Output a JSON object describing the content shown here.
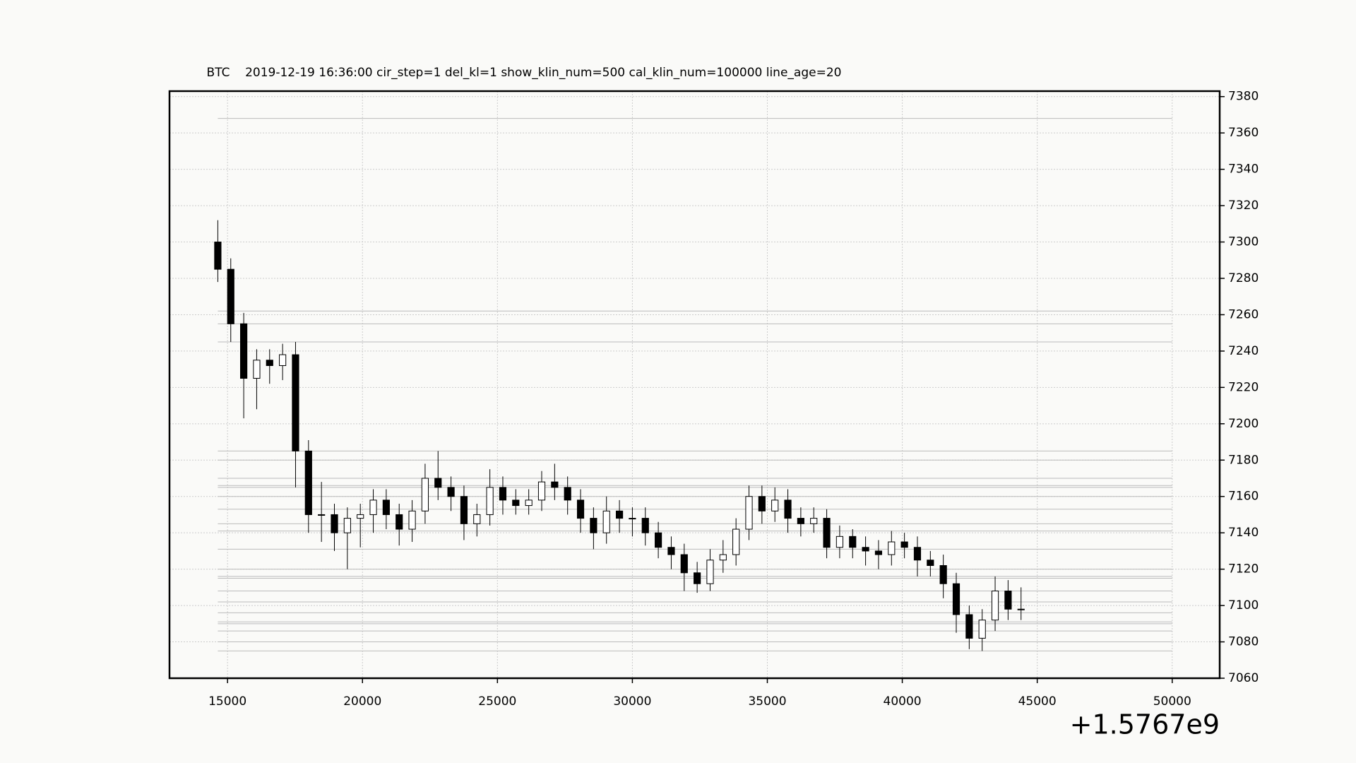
{
  "chart_data": {
    "type": "candlestick",
    "title": "BTC    2019-12-19 16:36:00 cir_step=1 del_kl=1 show_klin_num=500 cal_klin_num=100000 line_age=20",
    "x_offset_label": "+1.5767e9",
    "x": [
      14640,
      15120,
      15600,
      16080,
      16560,
      17040,
      17520,
      18000,
      18480,
      18960,
      19440,
      19920,
      20400,
      20880,
      21360,
      21840,
      22320,
      22800,
      23280,
      23760,
      24240,
      24720,
      25200,
      25680,
      26160,
      26640,
      27120,
      27600,
      28080,
      28560,
      29040,
      29520,
      30000,
      30480,
      30960,
      31440,
      31920,
      32400,
      32880,
      33360,
      33840,
      34320,
      34800,
      35280,
      35760,
      36240,
      36720,
      37200,
      37680,
      38160,
      38640,
      39120,
      39600,
      40080,
      40560,
      41040,
      41520,
      42000,
      42480,
      42960,
      43440,
      43920,
      44400
    ],
    "open": [
      7300,
      7285,
      7255,
      7225,
      7235,
      7232,
      7238,
      7185,
      7150,
      7150,
      7140,
      7148,
      7150,
      7158,
      7150,
      7142,
      7152,
      7170,
      7165,
      7160,
      7145,
      7150,
      7165,
      7158,
      7155,
      7158,
      7168,
      7165,
      7158,
      7148,
      7140,
      7152,
      7148,
      7148,
      7140,
      7132,
      7128,
      7118,
      7112,
      7125,
      7128,
      7142,
      7160,
      7152,
      7158,
      7148,
      7145,
      7148,
      7132,
      7138,
      7132,
      7130,
      7128,
      7135,
      7132,
      7125,
      7122,
      7112,
      7095,
      7082,
      7092,
      7108,
      7098
    ],
    "high": [
      7312,
      7291,
      7261,
      7241,
      7241,
      7244,
      7245,
      7191,
      7168,
      7156,
      7154,
      7156,
      7164,
      7164,
      7156,
      7158,
      7178,
      7185,
      7171,
      7166,
      7156,
      7175,
      7171,
      7164,
      7164,
      7174,
      7178,
      7171,
      7164,
      7154,
      7160,
      7158,
      7154,
      7154,
      7146,
      7138,
      7134,
      7124,
      7131,
      7136,
      7148,
      7166,
      7166,
      7165,
      7164,
      7154,
      7154,
      7153,
      7144,
      7142,
      7138,
      7136,
      7141,
      7140,
      7138,
      7130,
      7128,
      7118,
      7100,
      7098,
      7116,
      7114,
      7110
    ],
    "low": [
      7278,
      7245,
      7203,
      7208,
      7222,
      7224,
      7165,
      7140,
      7135,
      7130,
      7120,
      7132,
      7140,
      7142,
      7133,
      7135,
      7145,
      7158,
      7152,
      7136,
      7138,
      7144,
      7150,
      7150,
      7150,
      7152,
      7158,
      7150,
      7140,
      7131,
      7134,
      7140,
      7138,
      7133,
      7126,
      7120,
      7108,
      7107,
      7108,
      7118,
      7122,
      7136,
      7145,
      7146,
      7140,
      7138,
      7140,
      7126,
      7126,
      7126,
      7122,
      7120,
      7122,
      7126,
      7116,
      7116,
      7104,
      7085,
      7076,
      7075,
      7086,
      7092,
      7092
    ],
    "close": [
      7285,
      7255,
      7225,
      7235,
      7232,
      7238,
      7185,
      7150,
      7150,
      7140,
      7148,
      7150,
      7158,
      7150,
      7142,
      7152,
      7170,
      7165,
      7160,
      7145,
      7150,
      7165,
      7158,
      7155,
      7158,
      7168,
      7165,
      7158,
      7148,
      7140,
      7152,
      7148,
      7148,
      7140,
      7132,
      7128,
      7118,
      7112,
      7125,
      7128,
      7142,
      7160,
      7152,
      7158,
      7148,
      7145,
      7148,
      7132,
      7138,
      7132,
      7130,
      7128,
      7135,
      7132,
      7125,
      7122,
      7112,
      7095,
      7082,
      7092,
      7108,
      7098,
      7098
    ],
    "up_color": "#ffffff",
    "down_color": "#000000",
    "hlines": {
      "color": "#bbbbbb",
      "x_start": 14640,
      "x_end": 50000,
      "values": [
        7368,
        7262,
        7255,
        7245,
        7185,
        7180,
        7170,
        7166,
        7165,
        7160,
        7153,
        7145,
        7141,
        7131,
        7120,
        7116,
        7115,
        7108,
        7102,
        7096,
        7091,
        7090,
        7086,
        7080,
        7075
      ]
    },
    "xlim": [
      12850,
      51760
    ],
    "ylim": [
      7060,
      7383
    ],
    "xticks": [
      15000,
      20000,
      25000,
      30000,
      35000,
      40000,
      45000,
      50000
    ],
    "yticks": [
      7060,
      7080,
      7100,
      7120,
      7140,
      7160,
      7180,
      7200,
      7220,
      7240,
      7260,
      7280,
      7300,
      7320,
      7340,
      7360,
      7380
    ],
    "grid": true
  }
}
